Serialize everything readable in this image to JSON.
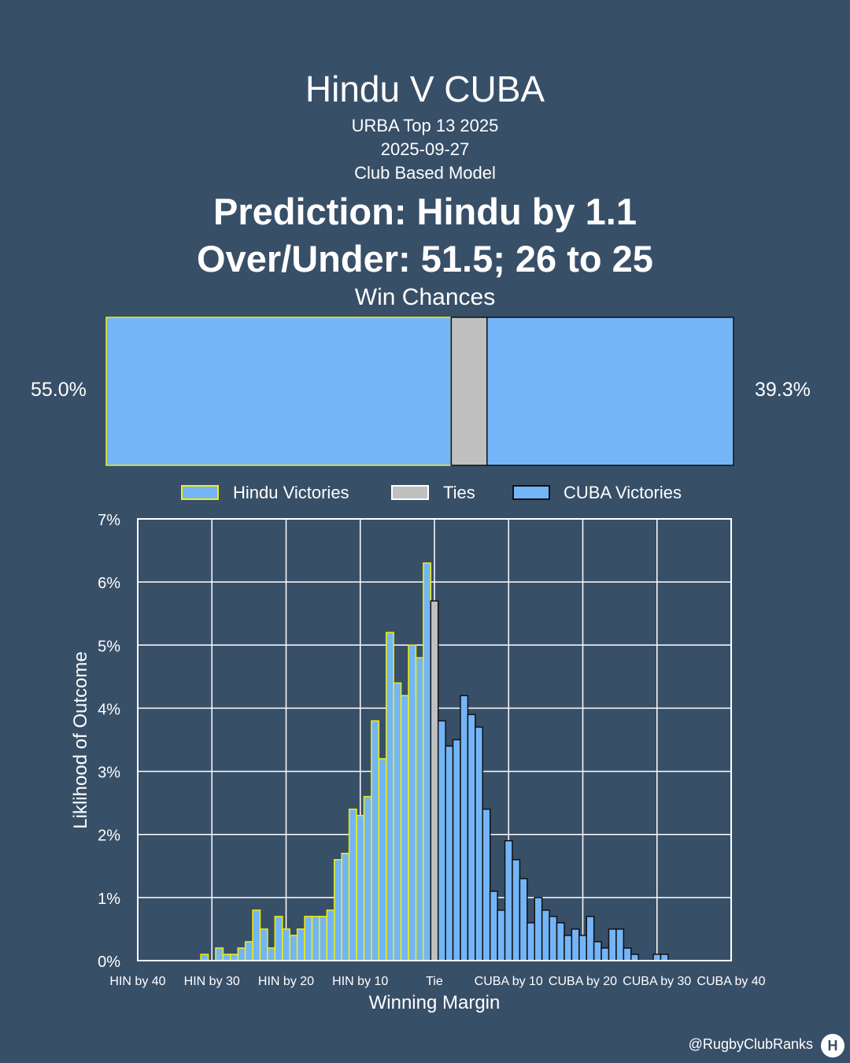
{
  "header": {
    "title": "Hindu V CUBA",
    "competition": "URBA Top 13 2025",
    "date": "2025-09-27",
    "model": "Club Based Model",
    "prediction": "Prediction: Hindu by 1.1",
    "over_under": "Over/Under: 51.5; 26 to 25",
    "win_chances_label": "Win Chances"
  },
  "win_chances": {
    "home_pct_label": "55.0%",
    "away_pct_label": "39.3%",
    "home": 55.0,
    "tie": 5.7,
    "away": 39.3
  },
  "legend": {
    "home": "Hindu Victories",
    "tie": "Ties",
    "away": "CUBA Victories"
  },
  "colors": {
    "background": "#384f68",
    "bar_fill": "#74b5f7",
    "tie_fill": "#c0c0c0",
    "home_edge": "#f0f000",
    "away_edge": "#111111"
  },
  "footer": {
    "handle": "@RugbyClubRanks",
    "logo": "H"
  },
  "chart_data": {
    "type": "bar",
    "xlabel": "Winning Margin",
    "ylabel": "Liklihood of Outcome",
    "xlim": [
      -40,
      40
    ],
    "ylim": [
      0,
      7
    ],
    "y_ticks": [
      "0%",
      "1%",
      "2%",
      "3%",
      "4%",
      "5%",
      "6%",
      "7%"
    ],
    "x_ticks": [
      {
        "x": -40,
        "label": "HIN by 40"
      },
      {
        "x": -30,
        "label": "HIN by 30"
      },
      {
        "x": -20,
        "label": "HIN by 20"
      },
      {
        "x": -10,
        "label": "HIN by 10"
      },
      {
        "x": 0,
        "label": "Tie"
      },
      {
        "x": 10,
        "label": "CUBA by 10"
      },
      {
        "x": 20,
        "label": "CUBA by 20"
      },
      {
        "x": 30,
        "label": "CUBA by 30"
      },
      {
        "x": 40,
        "label": "CUBA by 40"
      }
    ],
    "grid": true,
    "legend_position": "top",
    "series": [
      {
        "name": "Hindu Victories",
        "x": [
          -31,
          -30,
          -29,
          -28,
          -27,
          -26,
          -25,
          -24,
          -23,
          -22,
          -21,
          -20,
          -19,
          -18,
          -17,
          -16,
          -15,
          -14,
          -13,
          -12,
          -11,
          -10,
          -9,
          -8,
          -7,
          -6,
          -5,
          -4,
          -3,
          -2,
          -1
        ],
        "values": [
          0.1,
          0.0,
          0.2,
          0.1,
          0.1,
          0.2,
          0.3,
          0.8,
          0.5,
          0.2,
          0.7,
          0.5,
          0.4,
          0.5,
          0.7,
          0.7,
          0.7,
          0.8,
          1.6,
          1.7,
          2.4,
          2.3,
          2.6,
          3.8,
          3.2,
          5.2,
          4.4,
          4.2,
          5.0,
          4.8,
          6.3
        ]
      },
      {
        "name": "Ties",
        "x": [
          0
        ],
        "values": [
          5.7
        ]
      },
      {
        "name": "CUBA Victories",
        "x": [
          1,
          2,
          3,
          4,
          5,
          6,
          7,
          8,
          9,
          10,
          11,
          12,
          13,
          14,
          15,
          16,
          17,
          18,
          19,
          20,
          21,
          22,
          23,
          24,
          25,
          26,
          27,
          28,
          29,
          30,
          31,
          32,
          33,
          34,
          35
        ],
        "values": [
          3.8,
          3.4,
          3.5,
          4.2,
          3.9,
          3.7,
          2.4,
          1.1,
          0.8,
          1.9,
          1.6,
          1.3,
          0.6,
          1.0,
          0.8,
          0.7,
          0.6,
          0.4,
          0.5,
          0.4,
          0.7,
          0.3,
          0.2,
          0.5,
          0.5,
          0.2,
          0.1,
          0.0,
          0.0,
          0.1,
          0.1,
          0.0,
          0.0,
          0.0,
          0.0
        ]
      }
    ]
  }
}
